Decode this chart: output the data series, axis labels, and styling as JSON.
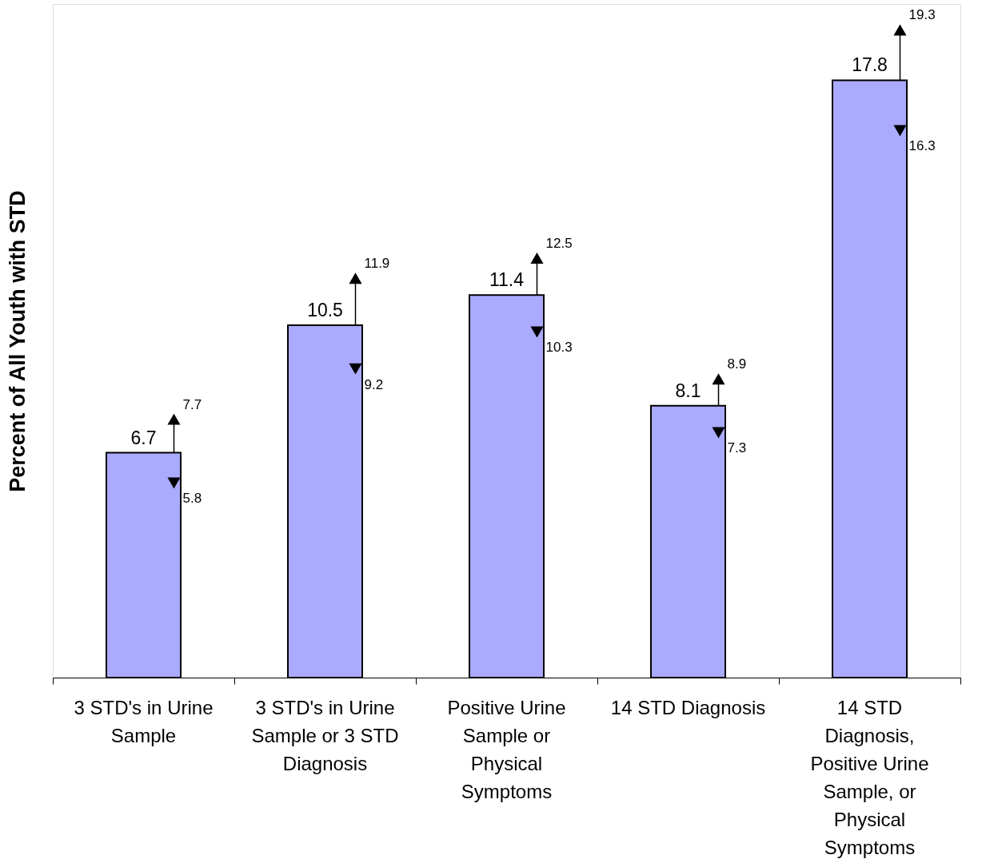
{
  "chart_data": {
    "type": "bar",
    "ylabel": "Percent of All Youth with STD",
    "categories": [
      "3 STD's in Urine Sample",
      "3 STD's in Urine Sample or 3 STD Diagnosis",
      "Positive Urine Sample or Physical Symptoms",
      "14 STD Diagnosis",
      "14 STD Diagnosis, Positive Urine Sample, or Physical Symptoms"
    ],
    "series": [
      {
        "color": "#aaaaff",
        "values": [
          6.7,
          10.5,
          11.4,
          8.1,
          17.8
        ]
      },
      {
        "type": "scatter",
        "marker": "triangle",
        "color": "#000000",
        "values": [
          7.7,
          11.9,
          12.5,
          8.9,
          19.3
        ]
      },
      {
        "type": "scatter",
        "marker": "triangle",
        "color": "#000000",
        "values": [
          5.8,
          9.2,
          10.3,
          7.3,
          16.3
        ]
      }
    ],
    "data_labels": true
  }
}
